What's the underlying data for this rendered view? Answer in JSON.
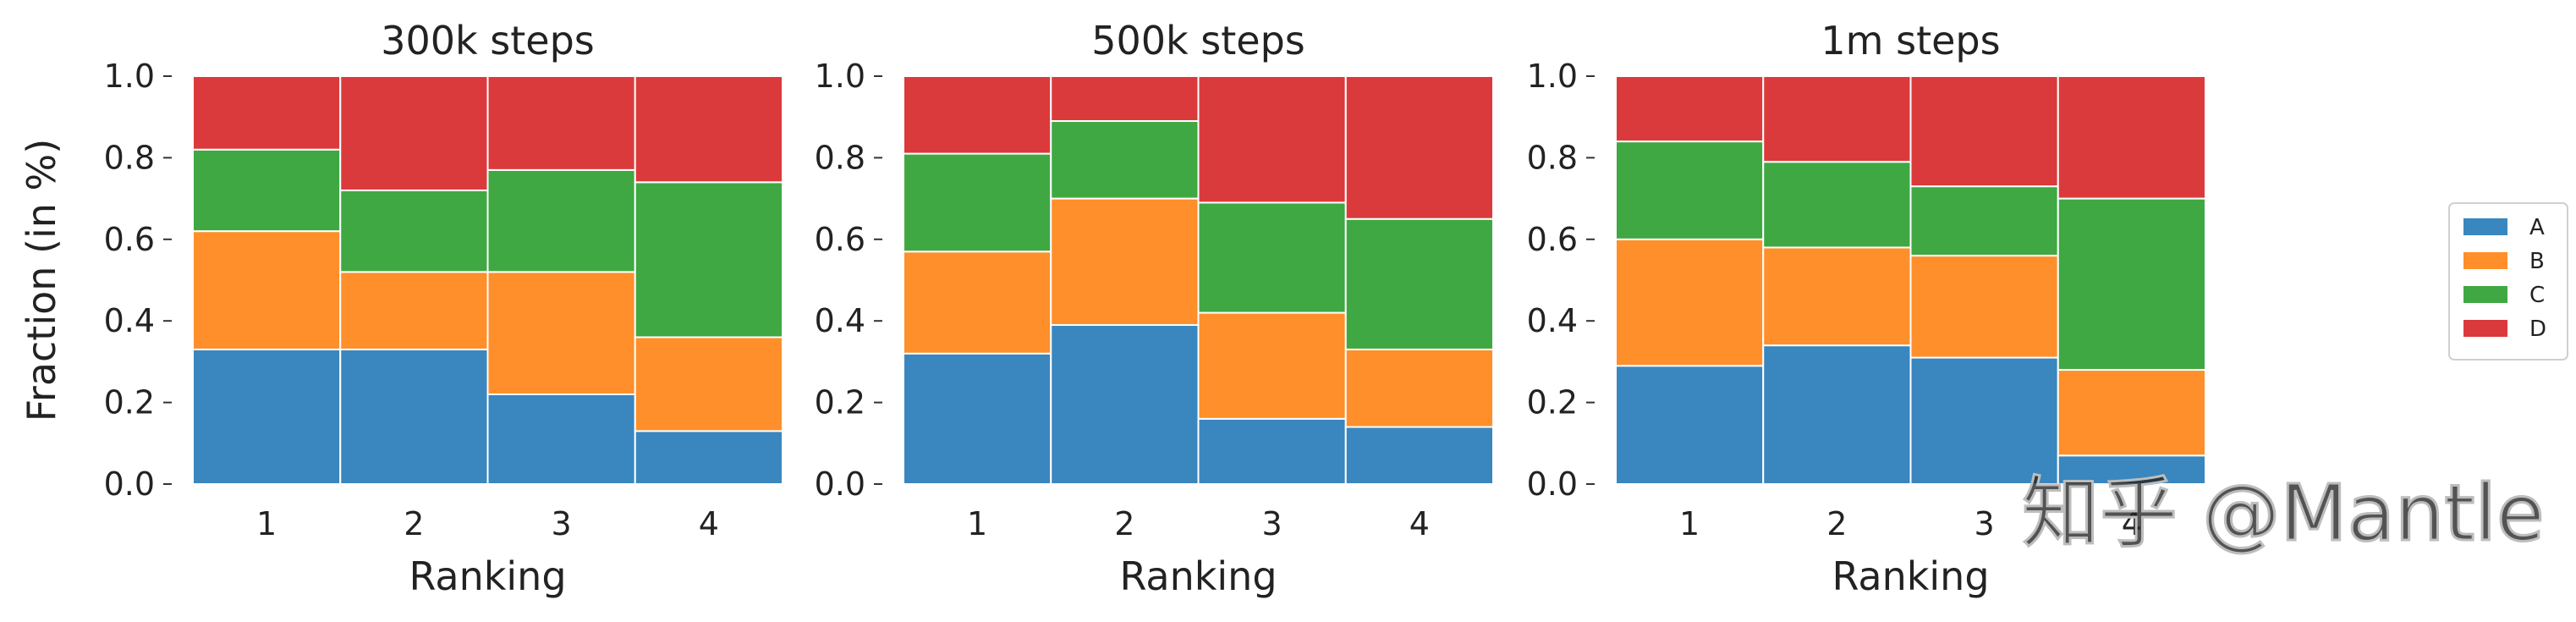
{
  "chart_data": [
    {
      "type": "bar",
      "stacked": true,
      "title": "300k steps",
      "xlabel": "Ranking",
      "ylabel": "Fraction (in %)",
      "categories": [
        "1",
        "2",
        "3",
        "4"
      ],
      "ylim": [
        0,
        1
      ],
      "yticks": [
        "0.0",
        "0.2",
        "0.4",
        "0.6",
        "0.8",
        "1.0"
      ],
      "series": [
        {
          "name": "A",
          "values": [
            0.33,
            0.33,
            0.22,
            0.13
          ]
        },
        {
          "name": "B",
          "values": [
            0.29,
            0.19,
            0.3,
            0.23
          ]
        },
        {
          "name": "C",
          "values": [
            0.2,
            0.2,
            0.25,
            0.38
          ]
        },
        {
          "name": "D",
          "values": [
            0.18,
            0.28,
            0.23,
            0.26
          ]
        }
      ]
    },
    {
      "type": "bar",
      "stacked": true,
      "title": "500k steps",
      "xlabel": "Ranking",
      "ylabel": "",
      "categories": [
        "1",
        "2",
        "3",
        "4"
      ],
      "ylim": [
        0,
        1
      ],
      "yticks": [
        "0.0",
        "0.2",
        "0.4",
        "0.6",
        "0.8",
        "1.0"
      ],
      "series": [
        {
          "name": "A",
          "values": [
            0.32,
            0.39,
            0.16,
            0.14
          ]
        },
        {
          "name": "B",
          "values": [
            0.25,
            0.31,
            0.26,
            0.19
          ]
        },
        {
          "name": "C",
          "values": [
            0.24,
            0.19,
            0.27,
            0.32
          ]
        },
        {
          "name": "D",
          "values": [
            0.19,
            0.11,
            0.31,
            0.35
          ]
        }
      ]
    },
    {
      "type": "bar",
      "stacked": true,
      "title": "1m steps",
      "xlabel": "Ranking",
      "ylabel": "",
      "categories": [
        "1",
        "2",
        "3",
        "4"
      ],
      "ylim": [
        0,
        1
      ],
      "yticks": [
        "0.0",
        "0.2",
        "0.4",
        "0.6",
        "0.8",
        "1.0"
      ],
      "series": [
        {
          "name": "A",
          "values": [
            0.29,
            0.34,
            0.31,
            0.07
          ]
        },
        {
          "name": "B",
          "values": [
            0.31,
            0.24,
            0.25,
            0.21
          ]
        },
        {
          "name": "C",
          "values": [
            0.24,
            0.21,
            0.17,
            0.42
          ]
        },
        {
          "name": "D",
          "values": [
            0.16,
            0.21,
            0.27,
            0.3
          ]
        }
      ]
    }
  ],
  "legend": {
    "placement": "right",
    "entries": [
      "A",
      "B",
      "C",
      "D"
    ]
  },
  "colors": {
    "A": "#3a86bf",
    "B": "#ff8f2a",
    "C": "#3fa843",
    "D": "#db3a3c"
  },
  "watermark": "知乎 @Mantle"
}
